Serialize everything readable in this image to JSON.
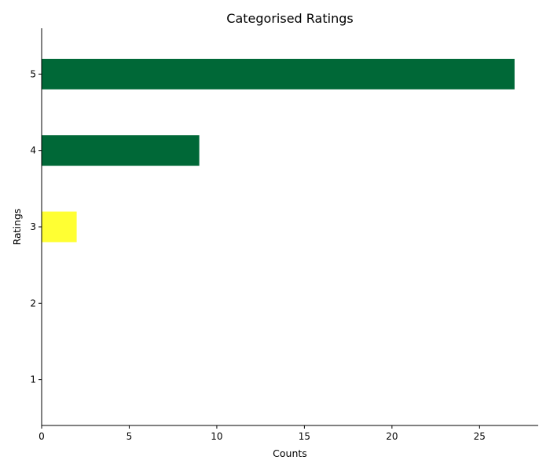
{
  "chart_data": {
    "type": "bar",
    "orientation": "horizontal",
    "title": "Categorised Ratings",
    "xlabel": "Counts",
    "ylabel": "Ratings",
    "categories": [
      "1",
      "2",
      "3",
      "4",
      "5"
    ],
    "values": [
      0,
      0,
      2,
      9,
      27
    ],
    "bar_colors": [
      "#006837",
      "#006837",
      "#ffff33",
      "#006837",
      "#006837"
    ],
    "xlim": [
      0,
      28.35
    ],
    "xticks": [
      0,
      5,
      10,
      15,
      20,
      25
    ],
    "grid": false,
    "legend": "none"
  }
}
